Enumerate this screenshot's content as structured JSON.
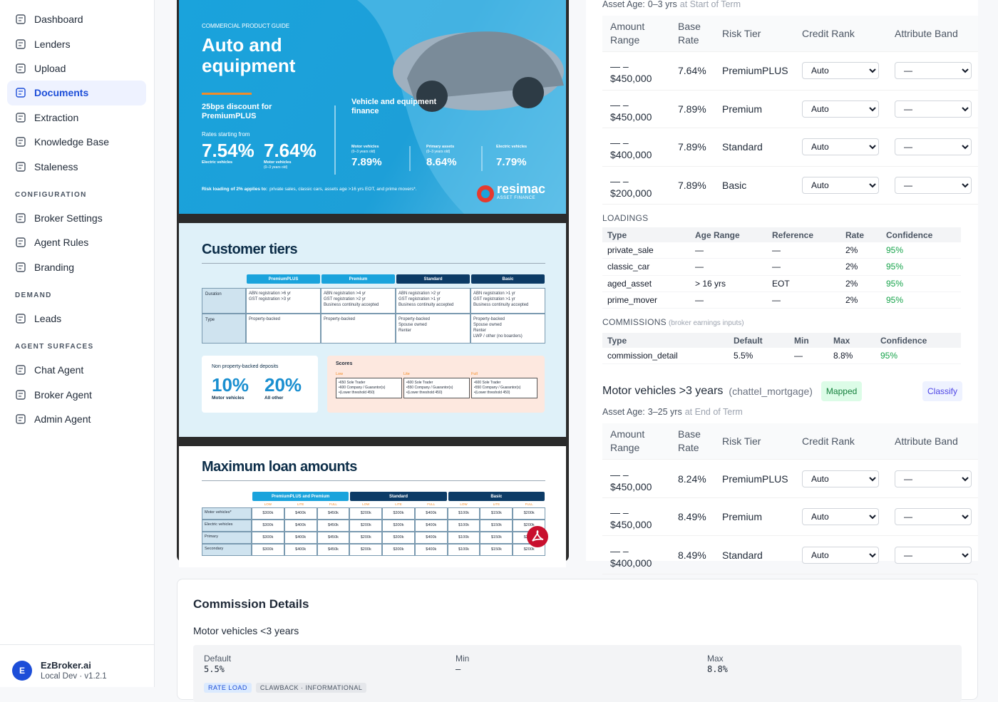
{
  "sidebar": {
    "items": [
      "Dashboard",
      "Lenders",
      "Upload",
      "Documents",
      "Extraction",
      "Knowledge Base",
      "Staleness"
    ],
    "sections": [
      {
        "title": "CONFIGURATION",
        "items": [
          "Broker Settings",
          "Agent Rules",
          "Branding"
        ]
      },
      {
        "title": "DEMAND",
        "items": [
          "Leads"
        ]
      },
      {
        "title": "AGENT SURFACES",
        "items": [
          "Chat Agent",
          "Broker Agent",
          "Admin Agent"
        ]
      }
    ],
    "user": {
      "avatar": "E",
      "name": "EzBroker.ai",
      "meta": "Local Dev · v1.2.1"
    }
  },
  "pdf": {
    "page1": {
      "eyebrow": "COMMERCIAL PRODUCT GUIDE",
      "title_line1": "Auto and",
      "title_line2": "equipment",
      "discount": "25bps discount for PremiumPLUS",
      "rates_from": "Rates starting from",
      "rates": [
        {
          "rate": "7.54%",
          "label": "Electric vehicles"
        },
        {
          "rate": "7.64%",
          "label": "Motor vehicles",
          "sub": "(0–3 years old)"
        }
      ],
      "pa": "P.A.",
      "finance_heading": "Vehicle and equipment finance",
      "assets": [
        {
          "label": "Motor vehicles",
          "sub": "(0–3 years old)",
          "rate": "7.89%"
        },
        {
          "label": "Primary assets",
          "sub": "(0–3 years old)",
          "rate": "8.64%"
        },
        {
          "label": "Electric vehicles",
          "rate": "7.79%"
        }
      ],
      "risk_label": "Risk loading of 2% applies to:",
      "risk_note": "private sales, classic cars, assets age >16 yrs EOT, and prime movers*.",
      "brand": "resimac",
      "brand_sub": "ASSET FINANCE"
    },
    "page2": {
      "title": "Customer tiers",
      "tiers": [
        "PremiumPLUS",
        "Premium",
        "Standard",
        "Basic"
      ],
      "rows": [
        {
          "label": "Duration",
          "cells": [
            [
              "ABN registration >6 yr",
              "GST registration >3 yr"
            ],
            [
              "ABN registration >4 yr",
              "GST registration >2 yr",
              "Business continuity accepted"
            ],
            [
              "ABN registration >2 yr",
              "GST registration >1 yr",
              "Business continuity accepted"
            ],
            [
              "ABN registration >1 yr",
              "GST registration >1 yr",
              "Business continuity accepted"
            ]
          ]
        },
        {
          "label": "Type",
          "cells": [
            [
              "Property-backed"
            ],
            [
              "Property-backed"
            ],
            [
              "Property-backed",
              "Spouse owned",
              "Renter"
            ],
            [
              "Property-backed",
              "Spouse owned",
              "Renter",
              "LWP / other (no boarders)"
            ]
          ]
        }
      ],
      "deposits": {
        "title": "Non property-backed deposits",
        "items": [
          {
            "value": "10%",
            "label": "Motor vehicles"
          },
          {
            "value": "20%",
            "label": "All other"
          }
        ]
      },
      "scores": {
        "title": "Scores",
        "columns": [
          {
            "name": "Low",
            "lines": [
              "•650 Sole Trader",
              "•600 Company / Guarantor(s)",
              "•(Lower threshold 450)"
            ]
          },
          {
            "name": "Lite",
            "lines": [
              "•600 Sole Trader",
              "•550 Company / Guarantor(s)",
              "•(Lower threshold 450)"
            ]
          },
          {
            "name": "Full",
            "lines": [
              "•600 Sole Trader",
              "•550 Company / Guarantor(s)",
              "•(Lower threshold 450)"
            ]
          }
        ]
      }
    },
    "page3": {
      "title": "Maximum loan amounts",
      "groups": [
        "PremiumPLUS and Premium",
        "Standard",
        "Basic"
      ],
      "sub": [
        "LOW",
        "LITE",
        "FULL"
      ],
      "rows": [
        {
          "label": "Motor vehicles*",
          "values": [
            "$300k",
            "$400k",
            "$450k",
            "$200k",
            "$300k",
            "$400k",
            "$100k",
            "$150k",
            "$200k"
          ]
        },
        {
          "label": "Electric vehicles",
          "values": [
            "$300k",
            "$400k",
            "$450k",
            "$200k",
            "$300k",
            "$400k",
            "$100k",
            "$150k",
            "$200k"
          ]
        },
        {
          "label": "Primary",
          "values": [
            "$300k",
            "$400k",
            "$450k",
            "$200k",
            "$300k",
            "$400k",
            "$100k",
            "$150k",
            "$200k"
          ]
        },
        {
          "label": "Secondary",
          "values": [
            "$300k",
            "$400k",
            "$450k",
            "$200k",
            "$300k",
            "$400k",
            "$100k",
            "$150k",
            "$200k"
          ]
        }
      ]
    }
  },
  "review": {
    "top_group": {
      "asset_age_label": "Asset Age:",
      "asset_age": "0–3 yrs",
      "asset_age_note": "at Start of Term",
      "headers": [
        "Amount Range",
        "Base Rate",
        "Risk Tier",
        "Credit Rank",
        "Attribute Band"
      ],
      "rows": [
        {
          "range_from": "— –",
          "range_to": "$450,000",
          "rate": "7.64%",
          "tier": "PremiumPLUS",
          "credit_rank": "Auto",
          "attribute_band": "—"
        },
        {
          "range_from": "— –",
          "range_to": "$450,000",
          "rate": "7.89%",
          "tier": "Premium",
          "credit_rank": "Auto",
          "attribute_band": "—"
        },
        {
          "range_from": "— –",
          "range_to": "$400,000",
          "rate": "7.89%",
          "tier": "Standard",
          "credit_rank": "Auto",
          "attribute_band": "—"
        },
        {
          "range_from": "— –",
          "range_to": "$200,000",
          "rate": "7.89%",
          "tier": "Basic",
          "credit_rank": "Auto",
          "attribute_band": "—"
        }
      ]
    },
    "loadings": {
      "title": "LOADINGS",
      "headers": [
        "Type",
        "Age Range",
        "Reference",
        "Rate",
        "Confidence"
      ],
      "rows": [
        [
          "private_sale",
          "—",
          "—",
          "2%",
          "95%"
        ],
        [
          "classic_car",
          "—",
          "—",
          "2%",
          "95%"
        ],
        [
          "aged_asset",
          "> 16 yrs",
          "EOT",
          "2%",
          "95%"
        ],
        [
          "prime_mover",
          "—",
          "—",
          "2%",
          "95%"
        ]
      ]
    },
    "commissions": {
      "title": "COMMISSIONS",
      "note": "(broker earnings inputs)",
      "headers": [
        "Type",
        "Default",
        "Min",
        "Max",
        "Confidence"
      ],
      "rows": [
        [
          "commission_detail",
          "5.5%",
          "—",
          "8.8%",
          "95%"
        ]
      ]
    },
    "group2": {
      "title": "Motor vehicles >3 years",
      "product": "(chattel_mortgage)",
      "status": "Mapped",
      "action": "Classify",
      "asset_age_label": "Asset Age:",
      "asset_age": "3–25 yrs",
      "asset_age_note": "at End of Term",
      "headers": [
        "Amount Range",
        "Base Rate",
        "Risk Tier",
        "Credit Rank",
        "Attribute Band"
      ],
      "rows": [
        {
          "range_from": "— –",
          "range_to": "$450,000",
          "rate": "8.24%",
          "tier": "PremiumPLUS",
          "credit_rank": "Auto",
          "attribute_band": "—"
        },
        {
          "range_from": "— –",
          "range_to": "$450,000",
          "rate": "8.49%",
          "tier": "Premium",
          "credit_rank": "Auto",
          "attribute_band": "—"
        },
        {
          "range_from": "— –",
          "range_to": "$400,000",
          "rate": "8.49%",
          "tier": "Standard",
          "credit_rank": "Auto",
          "attribute_band": "—"
        }
      ]
    }
  },
  "commission_details": {
    "title": "Commission Details",
    "subtitle": "Motor vehicles <3 years",
    "fields": [
      {
        "label": "Default",
        "value": "5.5%"
      },
      {
        "label": "Min",
        "value": "—"
      },
      {
        "label": "Max",
        "value": "8.8%"
      }
    ],
    "tags": [
      "RATE LOAD",
      "CLAWBACK · INFORMATIONAL"
    ]
  }
}
